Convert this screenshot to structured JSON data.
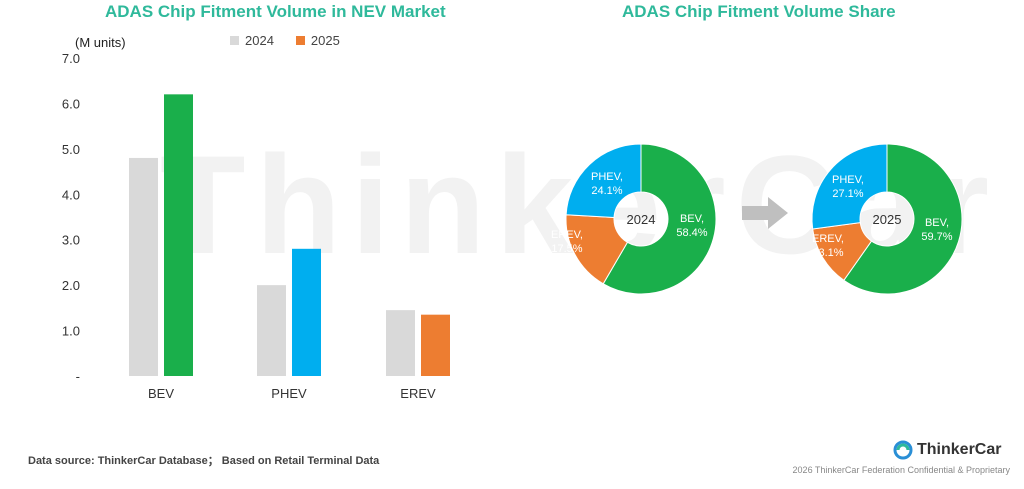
{
  "watermark": "ThinkerCar",
  "bar_title": "ADAS Chip Fitment Volume in NEV Market",
  "pie_title": "ADAS Chip Fitment Volume Share",
  "unit_label": "(M units)",
  "source": "Data source: ThinkerCar Database；  Based on Retail Terminal Data",
  "logo_text": "ThinkerCar",
  "footer": "2026 ThinkerCar Federation Confidential & Proprietary",
  "colors": {
    "y2024": "#d9d9d9",
    "bev": "#1aaf4b",
    "phev": "#00aeef",
    "erev": "#ed7d31",
    "title": "#2fb99b",
    "arrow": "#bfbfbf"
  },
  "chart_data": [
    {
      "type": "bar",
      "title": "ADAS Chip Fitment Volume in NEV Market",
      "ylabel": "(M units)",
      "categories": [
        "BEV",
        "PHEV",
        "EREV"
      ],
      "series": [
        {
          "name": "2024",
          "values": [
            4.8,
            2.0,
            1.45
          ]
        },
        {
          "name": "2025",
          "values": [
            6.2,
            2.8,
            1.35
          ]
        }
      ],
      "ylim": [
        0,
        7
      ],
      "yticks": [
        "-",
        "1.0",
        "2.0",
        "3.0",
        "4.0",
        "5.0",
        "6.0",
        "7.0"
      ],
      "grid": false,
      "legend": "top"
    },
    {
      "type": "pie",
      "title": "ADAS Chip Fitment Volume Share",
      "pies": [
        {
          "center_label": "2024",
          "slices": [
            {
              "name": "BEV",
              "value": 58.4,
              "label": "BEV,",
              "pct": "58.4%"
            },
            {
              "name": "EREV",
              "value": 17.5,
              "label": "EREV,",
              "pct": "17.5%"
            },
            {
              "name": "PHEV",
              "value": 24.1,
              "label": "PHEV,",
              "pct": "24.1%"
            }
          ]
        },
        {
          "center_label": "2025",
          "slices": [
            {
              "name": "BEV",
              "value": 59.7,
              "label": "BEV,",
              "pct": "59.7%"
            },
            {
              "name": "EREV",
              "value": 13.1,
              "label": "EREV,",
              "pct": "13.1%"
            },
            {
              "name": "PHEV",
              "value": 27.1,
              "label": "PHEV,",
              "pct": "27.1%"
            }
          ]
        }
      ]
    }
  ]
}
